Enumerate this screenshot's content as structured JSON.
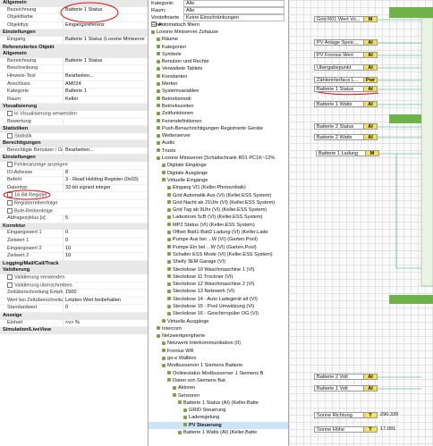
{
  "properties": [
    {
      "section": "Allgemein",
      "rows": [
        [
          "Bezeichnung",
          "Batterie 1 Status"
        ],
        [
          "Objektfarbe",
          ""
        ],
        [
          "Objekttyp",
          "Eingangsreferenz"
        ]
      ]
    },
    {
      "section": "Einstellungen",
      "rows": [
        [
          "Eingang",
          "Batterie 1 Status (Loxone Miniserve"
        ]
      ]
    },
    {
      "section": "Referenziertes Objekt",
      "rows": []
    },
    {
      "section": "Allgemein",
      "rows": [
        [
          "Bezeichnung",
          "Batterie 1 Status"
        ],
        [
          "Beschreibung",
          ""
        ],
        [
          "Hinweis-Text",
          "Bearbeiten..."
        ],
        [
          "Anschluss",
          "AM024"
        ],
        [
          "Kategorie",
          "Batterie 1"
        ],
        [
          "Raum",
          "Keller"
        ]
      ]
    },
    {
      "section": "Visualisierung",
      "rows": [
        [
          "In Visualisierung verwenden"
        ],
        [
          "Bewertung",
          ""
        ]
      ]
    },
    {
      "section": "Statistiken",
      "rows": [
        [
          "Statistik"
        ]
      ]
    },
    {
      "section": "Berechtigungen",
      "rows": [
        [
          "Berechtigte Benutzer / Gruppen",
          "Bearbeiten..."
        ]
      ]
    },
    {
      "section": "Einstellungen",
      "rows": [
        [
          "Fehleranzeige anzeigen"
        ],
        [
          "IO-Adresse",
          "8"
        ],
        [
          "Befehl",
          "3 - Read Holding Register (0x03)"
        ],
        [
          "Datentyp",
          "32-bit signed integer"
        ],
        [
          "16-Bit Register"
        ],
        [
          "Registerreihenfolge"
        ],
        [
          "Byte-Reihenfolge"
        ],
        [
          "Abfragezyklus [s]",
          "5"
        ]
      ]
    },
    {
      "section": "Korrektur",
      "rows": [
        [
          "Eingangswert 1",
          "0"
        ],
        [
          "Zielwert 1",
          "0"
        ],
        [
          "Eingangswert 2",
          "10"
        ],
        [
          "Zielwert 2",
          "10"
        ]
      ]
    },
    {
      "section": "Logging/Mail/Call/Track",
      "rows": []
    },
    {
      "section": "Validierung",
      "rows": [
        [
          "Validierung verwenden"
        ],
        [
          "Validierung überschreiben"
        ],
        [
          "Zeitüberschreitung Empfang",
          "1500"
        ],
        [
          "Wert bei Zeitüberschreitung",
          "Letzten Wert beibehalten"
        ],
        [
          "Standardwert",
          "0"
        ]
      ]
    },
    {
      "section": "Anzeige",
      "rows": [
        [
          "Einheit",
          "<v> %"
        ]
      ]
    },
    {
      "section": "Simulation/LiveView",
      "rows": []
    }
  ],
  "filters": [
    [
      "Kategorie:",
      "Alle"
    ],
    [
      "Raum:",
      "Alle"
    ],
    [
      "Vordefinierte Filter:",
      "Keine Einschränkungen"
    ]
  ],
  "auto_filter": "Automatisch filtern",
  "tree": [
    {
      "label": "Loxone Miniserver Zuhause",
      "depth": 0
    },
    {
      "label": "Räume",
      "depth": 1
    },
    {
      "label": "Kategorien",
      "depth": 1
    },
    {
      "label": "Symbole",
      "depth": 1
    },
    {
      "label": "Benutzer und Rechte",
      "depth": 1
    },
    {
      "label": "Verwaltete Tablets",
      "depth": 1
    },
    {
      "label": "Konstanten",
      "depth": 1
    },
    {
      "label": "Merker",
      "depth": 1
    },
    {
      "label": "Systemvariablen",
      "depth": 1
    },
    {
      "label": "Betriebsmodi",
      "depth": 1
    },
    {
      "label": "Betriebszeiten",
      "depth": 1
    },
    {
      "label": "Zeitfunktionen",
      "depth": 1
    },
    {
      "label": "Feriendefinitionen",
      "depth": 1
    },
    {
      "label": "Push-Benachrichtigungen Registrierte Geräte",
      "depth": 1
    },
    {
      "label": "Wetterserver",
      "depth": 1
    },
    {
      "label": "Audio",
      "depth": 1
    },
    {
      "label": "Trusts",
      "depth": 1
    },
    {
      "label": "Loxone Miniserver [Schaltschrank R01 PC1K~12%",
      "depth": 1
    },
    {
      "label": "Digitale Eingänge",
      "depth": 2
    },
    {
      "label": "Digitale Ausgänge",
      "depth": 2
    },
    {
      "label": "Virtuelle Eingänge",
      "depth": 2
    },
    {
      "label": "Eingang VI1 (Keller.Photovoltaik)",
      "depth": 3
    },
    {
      "label": "Grid Automatik Aus (VI) (Keller.ESS System)",
      "depth": 3
    },
    {
      "label": "Grid Nacht ab 21Uhr (VI) (Keller.ESS System)",
      "depth": 3
    },
    {
      "label": "Grid Tag ab 9Uhr (VI) (Keller.ESS System)",
      "depth": 3
    },
    {
      "label": "Ladestrom 5cB (VI) (Keller.ESS System)",
      "depth": 3
    },
    {
      "label": "MP2 Status (VI) (Keller.ESS System)",
      "depth": 3
    },
    {
      "label": "Offset Batt1-Batt2 Ladung (VI) (Keller.Lade",
      "depth": 3
    },
    {
      "label": "Pumpe Aus bei ...W (VI) (Garten.Pool)",
      "depth": 3
    },
    {
      "label": "Pumpe Ein bei ...W (VI) (Garten.Pool)",
      "depth": 3
    },
    {
      "label": "Schalter ESS Mode (VI) (Keller.ESS System)",
      "depth": 3
    },
    {
      "label": "Shelly 3EM Garage (VI)",
      "depth": 3
    },
    {
      "label": "Steckdose 10 Waschmaschine 1 (VI)",
      "depth": 3
    },
    {
      "label": "Steckdose 11 Trockner (VI)",
      "depth": 3
    },
    {
      "label": "Steckdose 12 Waschmaschine 2 (VI)",
      "depth": 3
    },
    {
      "label": "Steckdose 13 Netzwerk (VI)",
      "depth": 3
    },
    {
      "label": "Steckdose 14 - Auto Ladegerät alt (VI)",
      "depth": 3
    },
    {
      "label": "Steckdose 15 - Pool Umwälzung (VI)",
      "depth": 3
    },
    {
      "label": "Steckdose 16 - Geschirrspüler OG (VI)",
      "depth": 3
    },
    {
      "label": "Virtuelle Ausgänge",
      "depth": 2
    },
    {
      "label": "Intercom",
      "depth": 1
    },
    {
      "label": "Netzwerkperipherie",
      "depth": 1
    },
    {
      "label": "Netzwerk Interkommunikation (0)",
      "depth": 2
    },
    {
      "label": "Fronius WR",
      "depth": 2
    },
    {
      "label": "go-e Wallbox",
      "depth": 2
    },
    {
      "label": "Modbusserver 1 Siemens Batterie",
      "depth": 2
    },
    {
      "label": "Onlinestatus Modbusserver 1 Siemens B",
      "depth": 3
    },
    {
      "label": "Daten von Siemens Bat.",
      "depth": 3
    },
    {
      "label": "Aktoren",
      "depth": 4
    },
    {
      "label": "Sensoren",
      "depth": 4
    },
    {
      "label": "Batterie 1 Status (AI) (Keller.Batte",
      "depth": 5
    },
    {
      "label": "GRID Steuerung",
      "depth": 6
    },
    {
      "label": "Laderegelung",
      "depth": 6
    },
    {
      "label": "PV Steuerung",
      "depth": 6
    },
    {
      "label": "Batterie 1 Watts (AI) (Keller.Batte",
      "depth": 5
    }
  ],
  "blocks": [
    {
      "label": "Grid R01 Wert Vo...",
      "badge": "M"
    },
    {
      "label": "PV Anlage Speic...",
      "badge": "AI"
    },
    {
      "label": "PV Fronius Wert",
      "badge": "AI"
    },
    {
      "label": "Übergabepunkt",
      "badge": "AI"
    },
    {
      "label": "Zählerinterface L...",
      "badge": "Pwr"
    },
    {
      "label": "Batterie 1 Status",
      "badge": "AI"
    },
    {
      "label": "Batterie 1 Watts",
      "badge": "AI"
    },
    {
      "label": "Batterie 2 Status",
      "badge": "AI"
    },
    {
      "label": "Batterie 2 Watts",
      "badge": "AI"
    },
    {
      "label": "Batterie 1 Ladung",
      "badge": "M"
    },
    {
      "label": "Batterie 2 Volt",
      "badge": "AI"
    },
    {
      "label": "Batterie 1 Volt",
      "badge": "AI"
    },
    {
      "label": "Sonne Richtung",
      "badge": "T",
      "value": "290.339"
    },
    {
      "label": "Sonne Höhe",
      "badge": "T",
      "value": "17.091"
    }
  ]
}
